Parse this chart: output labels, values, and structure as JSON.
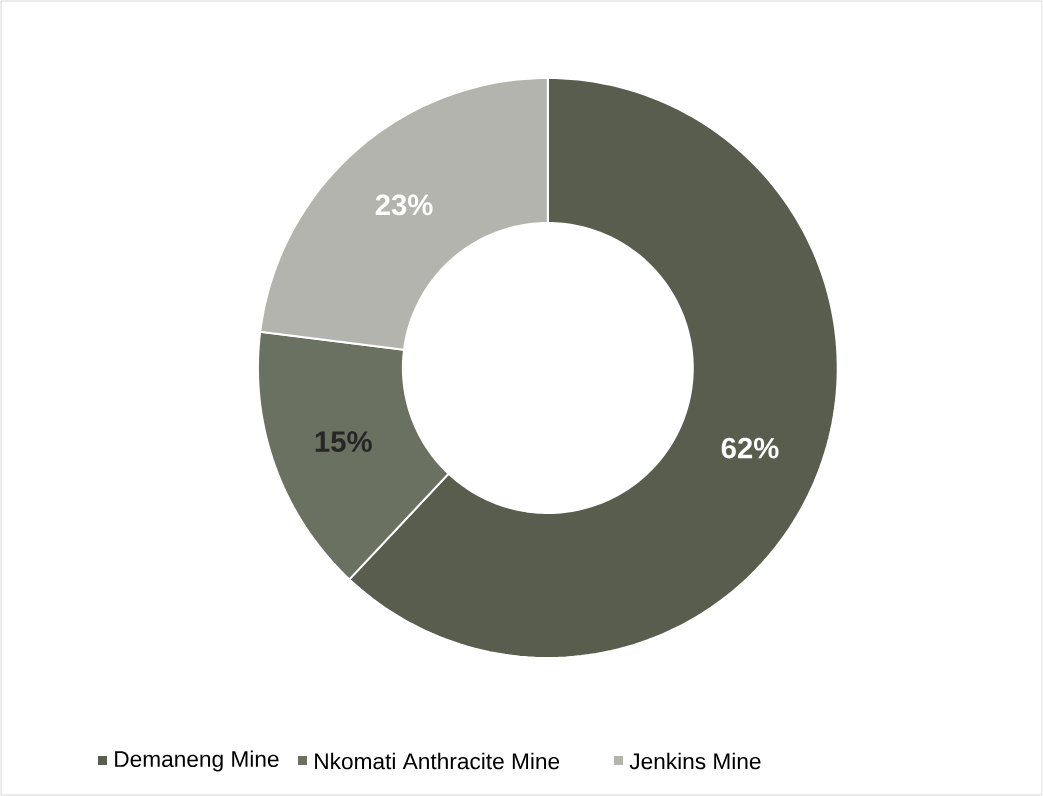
{
  "chart_data": {
    "type": "donut",
    "categories": [
      "Demaneng Mine",
      "Nkomati Anthracite Mine",
      "Jenkins Mine"
    ],
    "values": [
      62,
      15,
      23
    ],
    "colors": [
      "#595d4e",
      "#6a7160",
      "#b2b4ad"
    ],
    "value_labels": [
      "62%",
      "15%",
      "23%"
    ],
    "legend": "bottom"
  }
}
